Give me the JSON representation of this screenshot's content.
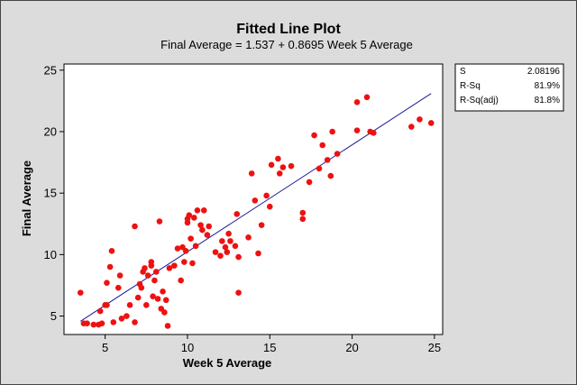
{
  "chart_data": {
    "type": "scatter",
    "title": "Fitted Line Plot",
    "subtitle": "Final Average =  1.537 + 0.8695 Week 5 Average",
    "xlabel": "Week 5 Average",
    "ylabel": "Final Average",
    "xlim": [
      2.5,
      25.5
    ],
    "ylim": [
      3.5,
      25.5
    ],
    "xticks": [
      5,
      10,
      15,
      20,
      25
    ],
    "yticks": [
      5,
      10,
      15,
      20,
      25
    ],
    "grid": false,
    "colors": {
      "points": "#ee1111",
      "fit_line": "#1a1a99",
      "frame_bg": "#dcdcdc",
      "plot_bg": "#ffffff"
    },
    "fit_line": {
      "intercept": 1.537,
      "slope": 0.8695,
      "x_range": [
        3.5,
        24.8
      ]
    },
    "stats": [
      {
        "label": "S",
        "value": "2.08196"
      },
      {
        "label": "R-Sq",
        "value": "81.9%"
      },
      {
        "label": "R-Sq(adj)",
        "value": "81.8%"
      }
    ],
    "points": [
      [
        3.5,
        6.9
      ],
      [
        3.7,
        4.4
      ],
      [
        3.9,
        4.4
      ],
      [
        4.3,
        4.3
      ],
      [
        4.6,
        4.3
      ],
      [
        4.7,
        5.4
      ],
      [
        4.8,
        4.4
      ],
      [
        5.0,
        5.9
      ],
      [
        5.1,
        5.9
      ],
      [
        5.1,
        7.7
      ],
      [
        5.3,
        9.0
      ],
      [
        5.4,
        10.3
      ],
      [
        5.5,
        4.5
      ],
      [
        5.8,
        7.3
      ],
      [
        5.9,
        8.3
      ],
      [
        6.0,
        4.8
      ],
      [
        6.3,
        5.0
      ],
      [
        6.5,
        5.9
      ],
      [
        6.8,
        4.5
      ],
      [
        6.8,
        12.3
      ],
      [
        7.0,
        6.5
      ],
      [
        7.1,
        7.6
      ],
      [
        7.2,
        7.3
      ],
      [
        7.3,
        8.6
      ],
      [
        7.4,
        8.9
      ],
      [
        7.5,
        5.9
      ],
      [
        7.6,
        8.3
      ],
      [
        7.8,
        9.1
      ],
      [
        7.8,
        9.4
      ],
      [
        7.9,
        6.6
      ],
      [
        8.0,
        7.9
      ],
      [
        8.1,
        8.6
      ],
      [
        8.2,
        6.4
      ],
      [
        8.3,
        12.7
      ],
      [
        8.4,
        5.6
      ],
      [
        8.5,
        7.0
      ],
      [
        8.6,
        5.3
      ],
      [
        8.7,
        6.3
      ],
      [
        8.8,
        4.2
      ],
      [
        8.9,
        8.9
      ],
      [
        9.2,
        9.1
      ],
      [
        9.4,
        10.5
      ],
      [
        9.6,
        7.9
      ],
      [
        9.7,
        10.6
      ],
      [
        9.8,
        9.4
      ],
      [
        9.9,
        10.3
      ],
      [
        10.0,
        12.6
      ],
      [
        10.0,
        12.9
      ],
      [
        10.1,
        13.2
      ],
      [
        10.2,
        11.3
      ],
      [
        10.3,
        9.3
      ],
      [
        10.4,
        13.0
      ],
      [
        10.5,
        10.7
      ],
      [
        10.6,
        13.6
      ],
      [
        10.8,
        12.4
      ],
      [
        10.9,
        12.0
      ],
      [
        11.0,
        13.6
      ],
      [
        11.2,
        11.6
      ],
      [
        11.3,
        12.3
      ],
      [
        11.7,
        10.2
      ],
      [
        12.0,
        9.9
      ],
      [
        12.1,
        11.1
      ],
      [
        12.3,
        10.6
      ],
      [
        12.4,
        10.2
      ],
      [
        12.5,
        11.7
      ],
      [
        12.6,
        11.1
      ],
      [
        12.9,
        10.7
      ],
      [
        13.0,
        13.3
      ],
      [
        13.1,
        6.9
      ],
      [
        13.1,
        9.8
      ],
      [
        13.7,
        11.4
      ],
      [
        13.9,
        16.6
      ],
      [
        14.1,
        14.4
      ],
      [
        14.3,
        10.1
      ],
      [
        14.5,
        12.4
      ],
      [
        14.8,
        14.8
      ],
      [
        15.0,
        13.9
      ],
      [
        15.1,
        17.3
      ],
      [
        15.5,
        17.8
      ],
      [
        15.6,
        16.6
      ],
      [
        15.8,
        17.1
      ],
      [
        16.3,
        17.2
      ],
      [
        17.0,
        13.4
      ],
      [
        17.0,
        12.9
      ],
      [
        17.4,
        15.9
      ],
      [
        17.7,
        19.7
      ],
      [
        18.0,
        17.0
      ],
      [
        18.2,
        18.9
      ],
      [
        18.5,
        17.7
      ],
      [
        18.7,
        16.4
      ],
      [
        18.8,
        20.0
      ],
      [
        19.1,
        18.2
      ],
      [
        20.3,
        20.1
      ],
      [
        20.3,
        22.4
      ],
      [
        20.9,
        22.8
      ],
      [
        21.1,
        20.0
      ],
      [
        21.3,
        19.9
      ],
      [
        23.6,
        20.4
      ],
      [
        24.1,
        21.0
      ],
      [
        24.8,
        20.7
      ]
    ]
  }
}
